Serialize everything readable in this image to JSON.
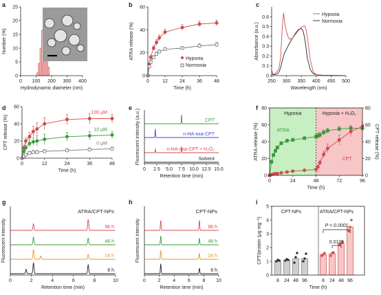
{
  "chart_data": [
    {
      "panel": "a",
      "type": "bar",
      "xlabel": "Hydrodynamic diameter (nm)",
      "ylabel": "Number (%)",
      "xlim": [
        0,
        400
      ],
      "ylim": [
        0,
        25
      ],
      "xticks": [
        "0",
        "100",
        "200",
        "300",
        "400"
      ],
      "yticks": [
        "0",
        "5",
        "10",
        "15",
        "20",
        "25"
      ],
      "bin_width": 10,
      "x": [
        110,
        120,
        130,
        140,
        150,
        160,
        170,
        180
      ],
      "values": [
        1,
        4.5,
        10,
        16.5,
        20.5,
        17,
        11,
        3
      ]
    },
    {
      "panel": "b",
      "type": "line",
      "xlabel": "Time (h)",
      "ylabel": "ATRA release (%)",
      "xlim": [
        0,
        48
      ],
      "ylim": [
        0,
        60
      ],
      "xticks": [
        "0",
        "12",
        "24",
        "36",
        "48"
      ],
      "yticks": [
        "0",
        "20",
        "40",
        "60"
      ],
      "x": [
        0,
        1,
        2,
        4,
        6,
        8,
        12,
        24,
        36,
        48
      ],
      "series": [
        {
          "name": "Hypoxia",
          "values": [
            0,
            10,
            16,
            24,
            29,
            33,
            38,
            42,
            45,
            46
          ],
          "errors": [
            0,
            1.5,
            2,
            2,
            2.5,
            2.5,
            2.5,
            2.5,
            2.5,
            2.5
          ]
        },
        {
          "name": "Normoxia",
          "values": [
            0,
            8,
            12,
            16,
            19,
            21,
            23,
            24,
            26,
            27
          ],
          "errors": [
            0,
            1,
            1.5,
            1.5,
            1.5,
            1.5,
            1.5,
            1.5,
            2,
            2
          ]
        }
      ]
    },
    {
      "panel": "c",
      "type": "line",
      "xlabel": "Wavelength (nm)",
      "ylabel": "Absorbance (a.u.)",
      "xlim": [
        250,
        500
      ],
      "ylim": [
        0,
        0.7
      ],
      "xticks": [
        "250",
        "300",
        "350",
        "400",
        "450",
        "500"
      ],
      "yticks": [
        "0",
        "0.1",
        "0.2",
        "0.3",
        "0.4",
        "0.5",
        "0.6"
      ],
      "series": [
        {
          "name": "Hypoxia",
          "x": [
            250,
            255,
            260,
            265,
            270,
            275,
            280,
            285,
            290,
            295,
            300,
            305,
            310,
            320,
            330,
            340,
            350,
            360,
            365,
            370,
            375,
            380,
            390,
            400,
            420,
            450,
            500
          ],
          "values": [
            0.05,
            0.02,
            0.02,
            0.03,
            0.05,
            0.08,
            0.18,
            0.45,
            0.64,
            0.52,
            0.45,
            0.4,
            0.37,
            0.38,
            0.42,
            0.46,
            0.49,
            0.51,
            0.48,
            0.4,
            0.28,
            0.16,
            0.04,
            0.01,
            0.005,
            0.002,
            0.001
          ]
        },
        {
          "name": "Normoxia",
          "x": [
            250,
            255,
            260,
            265,
            270,
            275,
            280,
            285,
            290,
            295,
            300,
            305,
            310,
            320,
            330,
            340,
            350,
            355,
            360,
            365,
            370,
            380,
            390,
            400,
            420,
            450,
            500
          ],
          "values": [
            0.02,
            0.01,
            0.01,
            0.015,
            0.02,
            0.04,
            0.08,
            0.14,
            0.2,
            0.24,
            0.27,
            0.3,
            0.33,
            0.38,
            0.43,
            0.47,
            0.48,
            0.46,
            0.4,
            0.3,
            0.18,
            0.06,
            0.02,
            0.01,
            0.005,
            0.002,
            0.001
          ]
        }
      ]
    },
    {
      "panel": "d",
      "type": "line",
      "xlabel": "Time (h)",
      "ylabel": "CPT release (%)",
      "xlim": [
        0,
        48
      ],
      "ylim": [
        0,
        60
      ],
      "xticks": [
        "0",
        "12",
        "24",
        "36",
        "48"
      ],
      "yticks": [
        "0",
        "20",
        "40",
        "60"
      ],
      "x": [
        0,
        1,
        2,
        4,
        6,
        8,
        12,
        24,
        36,
        48
      ],
      "series": [
        {
          "name": "100 μM",
          "values": [
            0,
            12,
            20,
            25,
            31,
            34,
            40,
            45,
            46,
            46
          ],
          "errors": [
            0,
            3,
            4,
            5,
            6,
            7,
            7,
            6,
            6,
            5
          ]
        },
        {
          "name": "10 μM",
          "values": [
            0,
            8,
            12,
            17,
            19,
            20,
            22,
            25,
            26,
            27
          ],
          "errors": [
            0,
            2,
            3,
            4,
            5,
            6,
            6,
            5,
            5,
            4
          ]
        },
        {
          "name": "0 μM",
          "values": [
            0,
            2,
            4,
            6,
            7,
            7,
            8,
            9,
            10,
            11
          ],
          "errors": [
            0,
            1,
            1.5,
            2,
            2,
            2,
            2,
            2,
            2,
            2
          ]
        }
      ]
    },
    {
      "panel": "e",
      "type": "line",
      "xlabel": "Retention time (min)",
      "ylabel": "Fluorescent intensity (a.u.)",
      "xlim": [
        0,
        15
      ],
      "xticks": [
        "0",
        "2.5",
        "5.0",
        "7.5",
        "10.0",
        "12.5",
        "15.0"
      ],
      "series": [
        {
          "name": "CPT",
          "peaks": [
            {
              "x": 7.5,
              "h": 1.0
            }
          ]
        },
        {
          "name": "n-HA-oxa-CPT",
          "peaks": [
            {
              "x": 2.2,
              "h": 1.0
            }
          ]
        },
        {
          "name": "n-HA-oxa-CPT + H₂O₂",
          "peaks": [
            {
              "x": 2.2,
              "h": 0.45
            },
            {
              "x": 7.5,
              "h": 0.7
            }
          ]
        },
        {
          "name": "Solvent",
          "peaks": []
        }
      ]
    },
    {
      "panel": "f",
      "type": "line",
      "xlabel": "Time (h)",
      "ylabel": "ATRA release (%)",
      "ylabel_right": "CPT release (%)",
      "xlim": [
        0,
        96
      ],
      "ylim": [
        0,
        80
      ],
      "xticks": [
        "0",
        "24",
        "48",
        "72",
        "96"
      ],
      "yticks": [
        "0",
        "20",
        "40",
        "60",
        "80"
      ],
      "regions": [
        {
          "label": "Hypoxia",
          "from": 0,
          "to": 48
        },
        {
          "label": "Hypoxia + H₂O₂",
          "from": 48,
          "to": 96
        }
      ],
      "x": [
        0,
        2,
        4,
        6,
        8,
        12,
        18,
        24,
        36,
        48,
        50,
        52,
        56,
        60,
        72,
        84,
        96
      ],
      "series": [
        {
          "name": "ATRA",
          "values": [
            0,
            16,
            24,
            29,
            33,
            38,
            41,
            42,
            44,
            46,
            47,
            48,
            51,
            53,
            55,
            56,
            56
          ],
          "errors": [
            0,
            2,
            2,
            2,
            2,
            2,
            2,
            2,
            2,
            2,
            3,
            3,
            3,
            3,
            3,
            3,
            3
          ]
        },
        {
          "name": "CPT",
          "values": [
            0,
            1,
            1.5,
            2,
            2,
            3,
            4,
            5,
            6,
            7,
            10,
            15,
            25,
            32,
            42,
            52,
            58
          ],
          "errors": [
            0,
            1,
            1,
            1,
            1,
            1,
            1,
            1,
            1,
            1,
            2,
            3,
            4,
            5,
            6,
            6,
            5
          ]
        }
      ]
    },
    {
      "panel": "g",
      "type": "line",
      "title": "ATRA/CPT-NPs",
      "xlabel": "Retention time (min)",
      "ylabel": "Fluorescent intensity",
      "xlim": [
        0,
        10
      ],
      "xticks": [
        "0",
        "2",
        "4",
        "6",
        "8",
        "10"
      ],
      "series": [
        {
          "name": "96 h",
          "peaks": [
            {
              "x": 2.2,
              "h": 0.6
            },
            {
              "x": 7.4,
              "h": 1.0
            }
          ]
        },
        {
          "name": "48 h",
          "peaks": [
            {
              "x": 2.2,
              "h": 0.7
            },
            {
              "x": 7.4,
              "h": 0.6
            }
          ]
        },
        {
          "name": "24 h",
          "peaks": [
            {
              "x": 2.2,
              "h": 0.9
            },
            {
              "x": 2.9,
              "h": 0.3
            },
            {
              "x": 7.4,
              "h": 0.45
            }
          ]
        },
        {
          "name": "8 h",
          "peaks": [
            {
              "x": 1.5,
              "h": 0.4
            },
            {
              "x": 2.2,
              "h": 1.0
            },
            {
              "x": 7.4,
              "h": 0.8
            }
          ]
        }
      ]
    },
    {
      "panel": "h",
      "type": "line",
      "title": "CPT-NPs",
      "xlabel": "Retention time (min)",
      "ylabel": "Fluorescent intensity",
      "xlim": [
        0,
        10
      ],
      "xticks": [
        "0",
        "2",
        "4",
        "6",
        "8",
        "10"
      ],
      "series": [
        {
          "name": "96 h",
          "peaks": [
            {
              "x": 2.2,
              "h": 0.9
            },
            {
              "x": 7.4,
              "h": 0.9
            }
          ]
        },
        {
          "name": "48 h",
          "peaks": [
            {
              "x": 2.2,
              "h": 0.8
            },
            {
              "x": 7.4,
              "h": 0.6
            }
          ]
        },
        {
          "name": "24 h",
          "peaks": [
            {
              "x": 2.2,
              "h": 0.8
            },
            {
              "x": 7.4,
              "h": 0.55
            }
          ]
        },
        {
          "name": "8 h",
          "peaks": [
            {
              "x": 2.2,
              "h": 0.9
            },
            {
              "x": 7.4,
              "h": 0.5
            }
          ]
        }
      ]
    },
    {
      "panel": "i",
      "type": "bar",
      "xlabel": "Time (h)",
      "ylabel": "CPT/protein (μg mg⁻¹)",
      "ylim": [
        0,
        5
      ],
      "yticks": [
        "0",
        "1",
        "2",
        "3",
        "4",
        "5"
      ],
      "groups": [
        {
          "name": "CPT-NPs",
          "categories": [
            "8",
            "24",
            "48",
            "96"
          ],
          "values": [
            1.05,
            1.1,
            1.2,
            1.2
          ],
          "points": [
            [
              1.0,
              1.1,
              1.05
            ],
            [
              1.05,
              1.15,
              1.1
            ],
            [
              0.9,
              1.3,
              1.6
            ],
            [
              1.0,
              1.2,
              1.55
            ]
          ]
        },
        {
          "name": "ATRA/CPT-NPs",
          "categories": [
            "8",
            "24",
            "48",
            "96"
          ],
          "values": [
            1.5,
            1.55,
            2.3,
            3.5
          ],
          "points": [
            [
              1.4,
              1.5,
              1.6
            ],
            [
              1.4,
              1.6,
              1.65
            ],
            [
              2.2,
              2.3,
              2.4
            ],
            [
              3.2,
              3.5,
              4.0
            ]
          ]
        }
      ],
      "annotations": [
        "0.0105",
        "P < 0.0001"
      ]
    }
  ],
  "panel_labels": [
    "a",
    "b",
    "c",
    "d",
    "e",
    "f",
    "g",
    "h",
    "i"
  ],
  "colors": {
    "hypoxia": "#d14b4b",
    "normoxia": "#777777",
    "green": "#3a9a3a",
    "blue": "#3b48d6",
    "orange": "#e89234",
    "pink_fill": "#f7c6c6",
    "green_fill": "#c7efc2",
    "dark": "#222222"
  }
}
